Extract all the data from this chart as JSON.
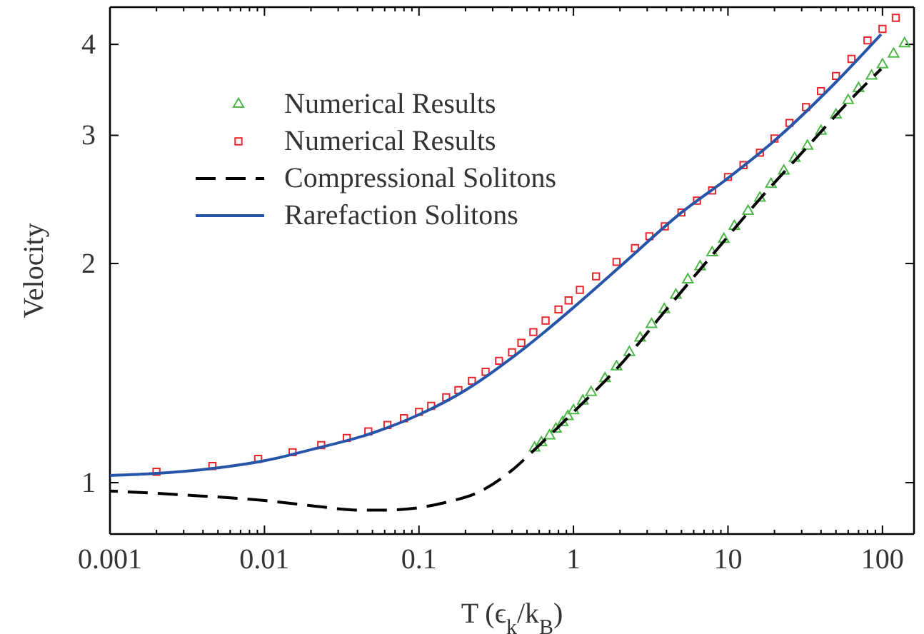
{
  "chart_data": {
    "type": "line",
    "xlabel": "T (ϵ$_{k}$/k$_{B}$)",
    "ylabel": "Velocity",
    "log": "xy",
    "grid": false,
    "legend": "top left",
    "xlim": [
      0.001,
      160
    ],
    "ylim": [
      0.85,
      4.5
    ],
    "xticks": [
      0.001,
      {
        "value": 0.002,
        "label": null
      },
      {
        "value": 0.003,
        "label": null
      },
      {
        "value": 0.004,
        "label": null
      },
      {
        "value": 0.005,
        "label": null
      },
      {
        "value": 0.006,
        "label": null
      },
      {
        "value": 0.007,
        "label": null
      },
      {
        "value": 0.008,
        "label": null
      },
      {
        "value": 0.009,
        "label": null
      },
      0.01,
      {
        "value": 0.02,
        "label": null
      },
      {
        "value": 0.03,
        "label": null
      },
      {
        "value": 0.04,
        "label": null
      },
      {
        "value": 0.05,
        "label": null
      },
      {
        "value": 0.06,
        "label": null
      },
      {
        "value": 0.07,
        "label": null
      },
      {
        "value": 0.08,
        "label": null
      },
      {
        "value": 0.09,
        "label": null
      },
      0.1,
      {
        "value": 0.2,
        "label": null
      },
      {
        "value": 0.3,
        "label": null
      },
      {
        "value": 0.4,
        "label": null
      },
      {
        "value": 0.5,
        "label": null
      },
      {
        "value": 0.6,
        "label": null
      },
      {
        "value": 0.7,
        "label": null
      },
      {
        "value": 0.8,
        "label": null
      },
      {
        "value": 0.9,
        "label": null
      },
      1,
      {
        "value": 2,
        "label": null
      },
      {
        "value": 3,
        "label": null
      },
      {
        "value": 4,
        "label": null
      },
      {
        "value": 5,
        "label": null
      },
      {
        "value": 6,
        "label": null
      },
      {
        "value": 7,
        "label": null
      },
      {
        "value": 8,
        "label": null
      },
      {
        "value": 9,
        "label": null
      },
      10,
      {
        "value": 20,
        "label": null
      },
      {
        "value": 30,
        "label": null
      },
      {
        "value": 40,
        "label": null
      },
      {
        "value": 50,
        "label": null
      },
      {
        "value": 60,
        "label": null
      },
      {
        "value": 70,
        "label": null
      },
      {
        "value": 80,
        "label": null
      },
      {
        "value": 90,
        "label": null
      },
      100
    ],
    "yticks": [
      1,
      2,
      3,
      4
    ],
    "series": [
      {
        "name": "Numerical Results",
        "type": "scatter",
        "marker": "triangle",
        "color": "#4db848",
        "x": [
          0.56,
          0.62,
          0.7,
          0.77,
          0.85,
          0.92,
          1,
          1.15,
          1.3,
          1.6,
          1.9,
          2.3,
          2.7,
          3.2,
          3.87,
          4.6,
          5.5,
          6.6,
          7.9,
          9.4,
          11,
          13.5,
          16.1,
          19,
          23,
          27,
          32.7,
          40,
          50,
          60,
          70,
          85,
          100,
          118,
          139
        ],
        "values": [
          1.116,
          1.135,
          1.16,
          1.185,
          1.21,
          1.233,
          1.256,
          1.295,
          1.33,
          1.39,
          1.443,
          1.51,
          1.58,
          1.65,
          1.73,
          1.81,
          1.9,
          1.98,
          2.07,
          2.16,
          2.25,
          2.36,
          2.46,
          2.57,
          2.68,
          2.79,
          2.9,
          3.04,
          3.2,
          3.35,
          3.48,
          3.62,
          3.75,
          3.88,
          4.01
        ]
      },
      {
        "name": "Numerical Results",
        "type": "scatter",
        "marker": "square",
        "color": "#e8262b",
        "x": [
          0.002,
          0.0046,
          0.0091,
          0.0152,
          0.0233,
          0.0341,
          0.047,
          0.0625,
          0.08,
          0.1,
          0.12,
          0.15,
          0.18,
          0.22,
          0.27,
          0.33,
          0.4,
          0.46,
          0.55,
          0.66,
          0.8,
          0.93,
          1.1,
          1.4,
          1.9,
          2.5,
          3.1,
          3.9,
          5,
          6.3,
          7.9,
          10,
          12.6,
          16.1,
          20,
          25,
          32,
          40,
          50,
          63,
          80,
          100,
          122
        ],
        "values": [
          1.035,
          1.054,
          1.078,
          1.101,
          1.126,
          1.152,
          1.176,
          1.2,
          1.226,
          1.251,
          1.275,
          1.31,
          1.34,
          1.38,
          1.42,
          1.47,
          1.51,
          1.556,
          1.61,
          1.67,
          1.73,
          1.78,
          1.84,
          1.92,
          2.01,
          2.1,
          2.18,
          2.25,
          2.35,
          2.44,
          2.52,
          2.63,
          2.73,
          2.84,
          2.97,
          3.12,
          3.28,
          3.45,
          3.62,
          3.82,
          4.05,
          4.2,
          4.35
        ]
      },
      {
        "name": "Compressional Solitons",
        "type": "line",
        "line_style": "dashed",
        "color": "#000000",
        "x": [
          0.001,
          0.003,
          0.01,
          0.02,
          0.04,
          0.06,
          0.1,
          0.15,
          0.24,
          0.4,
          0.56,
          1,
          2,
          4,
          8,
          16,
          32,
          64,
          98
        ],
        "values": [
          0.974,
          0.962,
          0.945,
          0.93,
          0.917,
          0.917,
          0.924,
          0.94,
          0.969,
          1.04,
          1.11,
          1.25,
          1.45,
          1.73,
          2.06,
          2.45,
          2.88,
          3.38,
          3.7
        ]
      },
      {
        "name": "Rarefaction Solitons",
        "type": "line",
        "line_style": "solid",
        "color": "#2554a8",
        "x": [
          0.001,
          0.002,
          0.005,
          0.01,
          0.02,
          0.05,
          0.1,
          0.2,
          0.5,
          1,
          2,
          5,
          10,
          20,
          50,
          98
        ],
        "values": [
          1.023,
          1.03,
          1.048,
          1.072,
          1.11,
          1.17,
          1.24,
          1.34,
          1.54,
          1.74,
          1.98,
          2.35,
          2.62,
          2.95,
          3.55,
          4.13
        ]
      }
    ]
  }
}
